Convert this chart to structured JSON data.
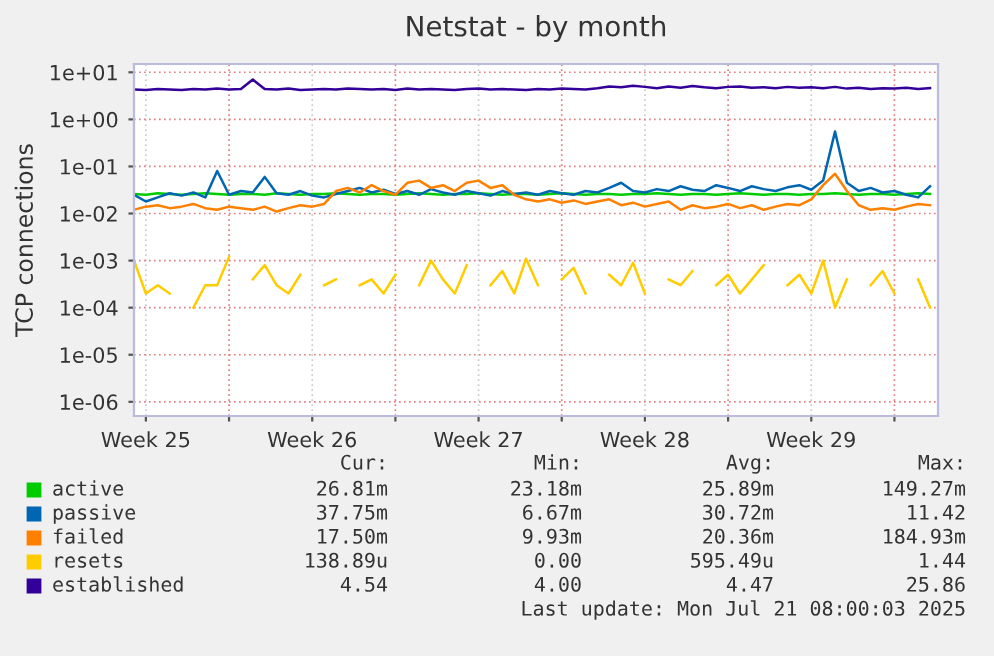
{
  "chart_data": {
    "type": "line",
    "title": "Netstat - by month",
    "ylabel": "TCP connections",
    "log": "y",
    "grid": true,
    "legend": "bottom",
    "x": [
      "2025-06-19T00:00",
      "2025-06-19T12:00",
      "2025-06-20T00:00",
      "2025-06-20T12:00",
      "2025-06-21T00:00",
      "2025-06-21T12:00",
      "2025-06-22T00:00",
      "2025-06-22T12:00",
      "2025-06-23T00:00",
      "2025-06-23T12:00",
      "2025-06-24T00:00",
      "2025-06-24T12:00",
      "2025-06-25T00:00",
      "2025-06-25T12:00",
      "2025-06-26T00:00",
      "2025-06-26T12:00",
      "2025-06-27T00:00",
      "2025-06-27T12:00",
      "2025-06-28T00:00",
      "2025-06-28T12:00",
      "2025-06-29T00:00",
      "2025-06-29T12:00",
      "2025-06-30T00:00",
      "2025-06-30T12:00",
      "2025-07-01T00:00",
      "2025-07-01T12:00",
      "2025-07-02T00:00",
      "2025-07-02T12:00",
      "2025-07-03T00:00",
      "2025-07-03T12:00",
      "2025-07-04T00:00",
      "2025-07-04T12:00",
      "2025-07-05T00:00",
      "2025-07-05T12:00",
      "2025-07-06T00:00",
      "2025-07-06T12:00",
      "2025-07-07T00:00",
      "2025-07-07T12:00",
      "2025-07-08T00:00",
      "2025-07-08T12:00",
      "2025-07-09T00:00",
      "2025-07-09T12:00",
      "2025-07-10T00:00",
      "2025-07-10T12:00",
      "2025-07-11T00:00",
      "2025-07-11T12:00",
      "2025-07-12T00:00",
      "2025-07-12T12:00",
      "2025-07-13T00:00",
      "2025-07-13T12:00",
      "2025-07-14T00:00",
      "2025-07-14T12:00",
      "2025-07-15T00:00",
      "2025-07-15T12:00",
      "2025-07-16T00:00",
      "2025-07-16T12:00",
      "2025-07-17T00:00",
      "2025-07-17T12:00",
      "2025-07-18T00:00",
      "2025-07-18T12:00",
      "2025-07-19T00:00",
      "2025-07-19T12:00",
      "2025-07-20T00:00",
      "2025-07-20T12:00",
      "2025-07-21T00:00",
      "2025-07-21T12:00",
      "2025-07-22T00:00",
      "2025-07-22T12:00"
    ],
    "xlim": [
      "2025-06-19T00:00",
      "2025-07-22T20:00"
    ],
    "xticks": [
      {
        "value": "2025-06-19T12:00",
        "label": "Week 25"
      },
      {
        "value": "2025-06-23T00:00",
        "label": null
      },
      {
        "value": "2025-06-26T12:00",
        "label": "Week 26"
      },
      {
        "value": "2025-06-30T00:00",
        "label": null
      },
      {
        "value": "2025-07-03T12:00",
        "label": "Week 27"
      },
      {
        "value": "2025-07-07T00:00",
        "label": null
      },
      {
        "value": "2025-07-10T12:00",
        "label": "Week 28"
      },
      {
        "value": "2025-07-14T00:00",
        "label": null
      },
      {
        "value": "2025-07-17T12:00",
        "label": "Week 29"
      },
      {
        "value": "2025-07-21T00:00",
        "label": null
      }
    ],
    "ylim": [
      5e-07,
      15
    ],
    "yticks": [
      {
        "value": 1e-06,
        "label": "1e-06"
      },
      {
        "value": 1e-05,
        "label": "1e-05"
      },
      {
        "value": 0.0001,
        "label": "1e-04"
      },
      {
        "value": 0.001,
        "label": "1e-03"
      },
      {
        "value": 0.01,
        "label": "1e-02"
      },
      {
        "value": 0.1,
        "label": "1e-01"
      },
      {
        "value": 1,
        "label": "1e+00"
      },
      {
        "value": 10,
        "label": "1e+01"
      }
    ],
    "series": [
      {
        "name": "active",
        "color": "#00cc00",
        "values": [
          0.026,
          0.025,
          0.027,
          0.026,
          0.025,
          0.026,
          0.027,
          0.026,
          0.025,
          0.026,
          0.026,
          0.025,
          0.027,
          0.026,
          0.025,
          0.026,
          0.026,
          0.027,
          0.026,
          0.025,
          0.026,
          0.026,
          0.025,
          0.026,
          0.027,
          0.026,
          0.025,
          0.026,
          0.026,
          0.027,
          0.026,
          0.025,
          0.026,
          0.026,
          0.025,
          0.026,
          0.027,
          0.026,
          0.025,
          0.026,
          0.026,
          0.025,
          0.026,
          0.026,
          0.027,
          0.026,
          0.025,
          0.026,
          0.026,
          0.025,
          0.026,
          0.027,
          0.026,
          0.025,
          0.026,
          0.026,
          0.025,
          0.026,
          0.026,
          0.027,
          0.026,
          0.025,
          0.026,
          0.026,
          0.025,
          0.026,
          0.027,
          0.026
        ]
      },
      {
        "name": "passive",
        "color": "#0066b3",
        "values": [
          0.025,
          0.018,
          0.022,
          0.027,
          0.024,
          0.028,
          0.022,
          0.08,
          0.025,
          0.03,
          0.028,
          0.06,
          0.027,
          0.025,
          0.03,
          0.024,
          0.022,
          0.026,
          0.03,
          0.035,
          0.028,
          0.032,
          0.026,
          0.03,
          0.025,
          0.033,
          0.028,
          0.025,
          0.03,
          0.027,
          0.024,
          0.03,
          0.026,
          0.028,
          0.025,
          0.03,
          0.027,
          0.025,
          0.03,
          0.028,
          0.035,
          0.045,
          0.03,
          0.028,
          0.033,
          0.03,
          0.038,
          0.032,
          0.03,
          0.04,
          0.035,
          0.03,
          0.038,
          0.033,
          0.03,
          0.036,
          0.04,
          0.032,
          0.05,
          0.55,
          0.045,
          0.03,
          0.035,
          0.028,
          0.03,
          0.025,
          0.022,
          0.038
        ]
      },
      {
        "name": "failed",
        "color": "#ff8000",
        "values": [
          0.012,
          0.014,
          0.015,
          0.013,
          0.014,
          0.016,
          0.013,
          0.012,
          0.014,
          0.013,
          0.012,
          0.014,
          0.011,
          0.013,
          0.015,
          0.014,
          0.016,
          0.03,
          0.035,
          0.028,
          0.04,
          0.03,
          0.025,
          0.045,
          0.05,
          0.035,
          0.04,
          0.03,
          0.045,
          0.05,
          0.035,
          0.04,
          0.025,
          0.02,
          0.018,
          0.02,
          0.017,
          0.019,
          0.016,
          0.018,
          0.02,
          0.015,
          0.017,
          0.014,
          0.016,
          0.018,
          0.012,
          0.015,
          0.013,
          0.014,
          0.016,
          0.013,
          0.015,
          0.012,
          0.014,
          0.016,
          0.015,
          0.02,
          0.04,
          0.07,
          0.03,
          0.015,
          0.012,
          0.013,
          0.012,
          0.014,
          0.016,
          0.015
        ]
      },
      {
        "name": "resets",
        "color": "#ffcc00",
        "values": [
          0.001,
          0.0002,
          0.0003,
          0.0002,
          null,
          0.0001,
          0.0003,
          0.0003,
          0.0012,
          null,
          0.0004,
          0.0008,
          0.0003,
          0.0002,
          0.0005,
          null,
          0.0003,
          0.0004,
          null,
          0.0003,
          0.0004,
          0.0002,
          0.0005,
          null,
          0.0003,
          0.001,
          0.0004,
          0.0002,
          0.0008,
          null,
          0.0003,
          0.0006,
          0.0002,
          0.0011,
          0.0003,
          null,
          0.0004,
          0.0007,
          0.0002,
          null,
          0.0005,
          0.0003,
          0.0009,
          0.0002,
          null,
          0.0004,
          0.0003,
          0.0006,
          null,
          0.0003,
          0.0005,
          0.0002,
          0.0004,
          0.0008,
          null,
          0.0003,
          0.0005,
          0.0002,
          0.001,
          0.0001,
          0.0004,
          null,
          0.0003,
          0.0006,
          0.0002,
          null,
          0.0004,
          0.0001
        ]
      },
      {
        "name": "established",
        "color": "#330099",
        "values": [
          4.3,
          4.2,
          4.4,
          4.3,
          4.2,
          4.4,
          4.3,
          4.5,
          4.3,
          4.4,
          7.0,
          4.4,
          4.3,
          4.5,
          4.2,
          4.3,
          4.4,
          4.3,
          4.5,
          4.4,
          4.3,
          4.4,
          4.2,
          4.5,
          4.3,
          4.4,
          4.3,
          4.2,
          4.4,
          4.5,
          4.3,
          4.4,
          4.3,
          4.2,
          4.4,
          4.3,
          4.5,
          4.4,
          4.3,
          4.6,
          5.0,
          4.8,
          5.2,
          4.9,
          4.6,
          5.0,
          4.7,
          5.1,
          4.8,
          4.6,
          4.9,
          5.0,
          4.7,
          4.8,
          4.6,
          4.9,
          4.7,
          4.8,
          4.6,
          4.9,
          4.5,
          4.7,
          4.4,
          4.6,
          4.5,
          4.7,
          4.4,
          4.6
        ]
      }
    ],
    "annotations": [
      "Cur:",
      "Min:",
      "Avg:",
      "Max:",
      "26.81m",
      "23.18m",
      "25.89m",
      "149.27m",
      "37.75m",
      "6.67m",
      "30.72m",
      "11.42",
      "17.50m",
      "9.93m",
      "20.36m",
      "184.93m",
      "138.89u",
      "0.00",
      "595.49u",
      "1.44",
      "4.54",
      "4.00",
      "4.47",
      "25.86",
      "Last update: Mon Jul 21 08:00:03 2025"
    ]
  }
}
